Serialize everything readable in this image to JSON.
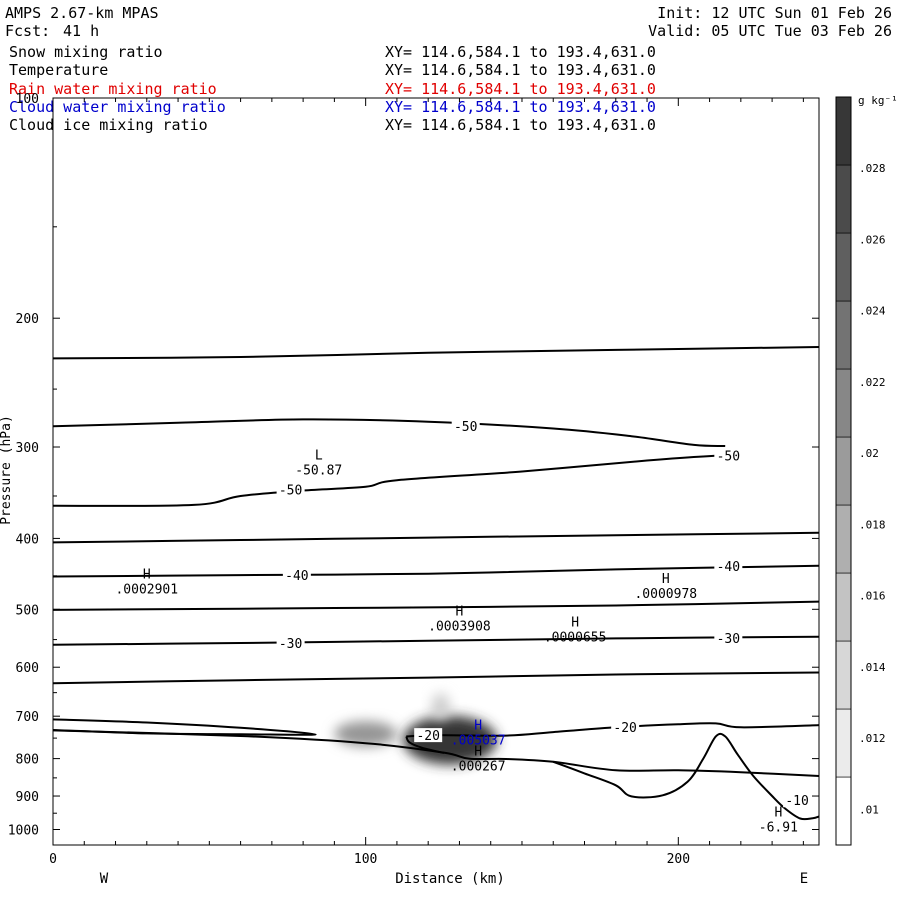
{
  "header": {
    "model": "AMPS 2.67-km MPAS",
    "forecast_label": "Fcst:",
    "forecast_value": "41 h",
    "init": "Init: 12 UTC Sun 01 Feb 26",
    "valid": "Valid: 05 UTC Tue 03 Feb 26"
  },
  "fields": [
    {
      "name": "Snow mixing ratio",
      "xy": "XY= 114.6,584.1 to 193.4,631.0",
      "color": "#000000"
    },
    {
      "name": "Temperature",
      "xy": "XY= 114.6,584.1 to 193.4,631.0",
      "color": "#000000"
    },
    {
      "name": "Rain water mixing ratio",
      "xy": "XY= 114.6,584.1 to 193.4,631.0",
      "color": "#e00000"
    },
    {
      "name": "Cloud water mixing ratio",
      "xy": "XY= 114.6,584.1 to 193.4,631.0",
      "color": "#0000cc"
    },
    {
      "name": "Cloud ice mixing ratio",
      "xy": "XY= 114.6,584.1 to 193.4,631.0",
      "color": "#000000"
    }
  ],
  "chart_data": {
    "type": "contour",
    "xlabel": "Distance (km)",
    "ylabel": "Pressure (hPa)",
    "xlim": [
      0,
      245
    ],
    "ylim": [
      100,
      1050
    ],
    "x_ticks": [
      0,
      100,
      200
    ],
    "y_ticks": [
      100,
      200,
      300,
      400,
      500,
      600,
      700,
      800,
      900,
      1000
    ],
    "y_scale": "log",
    "x_end_labels": {
      "left": "W",
      "right": "E"
    },
    "colorbar": {
      "unit": "g kg⁻¹",
      "ticks": [
        ".01",
        ".012",
        ".014",
        ".016",
        ".018",
        ".02",
        ".022",
        ".024",
        ".026",
        ".028"
      ],
      "tick_values": [
        0.01,
        0.012,
        0.014,
        0.016,
        0.018,
        0.02,
        0.022,
        0.024,
        0.026,
        0.028
      ]
    },
    "temperature_contours": [
      {
        "points": [
          [
            0,
            227
          ],
          [
            60,
            226
          ],
          [
            120,
            223
          ],
          [
            180,
            221
          ],
          [
            245,
            219
          ]
        ]
      },
      {
        "points": [
          [
            0,
            281
          ],
          [
            40,
            278
          ],
          [
            80,
            275
          ],
          [
            120,
            277
          ],
          [
            160,
            283
          ],
          [
            185,
            290
          ],
          [
            205,
            298
          ],
          [
            215,
            299
          ]
        ]
      },
      {
        "points": [
          [
            0,
            361
          ],
          [
            45,
            360
          ],
          [
            60,
            350
          ],
          [
            80,
            344
          ],
          [
            100,
            340
          ],
          [
            110,
            333
          ],
          [
            150,
            324
          ],
          [
            190,
            313
          ],
          [
            215,
            308
          ],
          [
            220,
            310
          ]
        ]
      },
      {
        "points": [
          [
            0,
            405
          ],
          [
            60,
            402
          ],
          [
            120,
            399
          ],
          [
            180,
            396
          ],
          [
            245,
            393
          ]
        ]
      },
      {
        "points": [
          [
            0,
            451
          ],
          [
            60,
            449
          ],
          [
            120,
            447
          ],
          [
            180,
            441
          ],
          [
            245,
            436
          ]
        ]
      },
      {
        "points": [
          [
            0,
            501
          ],
          [
            60,
            499
          ],
          [
            120,
            497
          ],
          [
            180,
            494
          ],
          [
            245,
            488
          ]
        ]
      },
      {
        "points": [
          [
            0,
            559
          ],
          [
            60,
            556
          ],
          [
            120,
            552
          ],
          [
            180,
            548
          ],
          [
            245,
            545
          ]
        ]
      },
      {
        "points": [
          [
            0,
            631
          ],
          [
            60,
            625
          ],
          [
            120,
            620
          ],
          [
            180,
            614
          ],
          [
            245,
            610
          ]
        ]
      },
      {
        "points": [
          [
            0,
            707
          ],
          [
            30,
            714
          ],
          [
            60,
            726
          ],
          [
            84,
            741
          ],
          [
            60,
            741
          ],
          [
            30,
            739
          ],
          [
            0,
            731
          ]
        ]
      },
      {
        "points": [
          [
            113,
            746
          ],
          [
            123,
            743
          ],
          [
            145,
            744
          ],
          [
            160,
            736
          ],
          [
            180,
            725
          ],
          [
            200,
            718
          ],
          [
            212,
            716
          ],
          [
            220,
            725
          ],
          [
            245,
            720
          ]
        ]
      },
      {
        "points": [
          [
            113,
            746
          ],
          [
            114,
            760
          ],
          [
            118,
            773
          ],
          [
            125,
            786
          ]
        ]
      },
      {
        "points": [
          [
            0,
            732
          ],
          [
            60,
            745
          ],
          [
            100,
            762
          ],
          [
            125,
            785
          ],
          [
            133,
            800
          ],
          [
            145,
            801
          ],
          [
            160,
            808
          ],
          [
            180,
            830
          ],
          [
            200,
            830
          ],
          [
            220,
            835
          ],
          [
            245,
            845
          ]
        ]
      },
      {
        "points": [
          [
            160,
            808
          ],
          [
            170,
            838
          ],
          [
            180,
            870
          ],
          [
            185,
            901
          ],
          [
            195,
            898
          ],
          [
            203,
            860
          ],
          [
            208,
            800
          ],
          [
            212,
            746
          ],
          [
            215,
            746
          ],
          [
            219,
            790
          ],
          [
            224,
            845
          ],
          [
            230,
            900
          ],
          [
            234,
            935
          ],
          [
            239,
            966
          ],
          [
            243,
            965
          ],
          [
            245,
            960
          ]
        ]
      }
    ],
    "contour_labels": [
      {
        "x": 132,
        "p": 281,
        "text": "-50"
      },
      {
        "x": 216,
        "p": 308,
        "text": "-50"
      },
      {
        "x": 76,
        "p": 343,
        "text": "-50"
      },
      {
        "x": 78,
        "p": 449,
        "text": "-40"
      },
      {
        "x": 216,
        "p": 436,
        "text": "-40"
      },
      {
        "x": 76,
        "p": 556,
        "text": "-30"
      },
      {
        "x": 216,
        "p": 547,
        "text": "-30"
      },
      {
        "x": 120,
        "p": 743,
        "text": "-20"
      },
      {
        "x": 183,
        "p": 724,
        "text": "-20"
      },
      {
        "x": 238,
        "p": 912,
        "text": "-10"
      }
    ],
    "extrema": [
      {
        "x": 85,
        "p": 312,
        "kind": "L",
        "value": "-50.87",
        "color": "#000000"
      },
      {
        "x": 30,
        "p": 454,
        "kind": "H",
        "value": ".0002901",
        "color": "#000000"
      },
      {
        "x": 130,
        "p": 510,
        "kind": "H",
        "value": ".0003908",
        "color": "#000000"
      },
      {
        "x": 167,
        "p": 528,
        "kind": "H",
        "value": ".0000655",
        "color": "#000000"
      },
      {
        "x": 196,
        "p": 460,
        "kind": "H",
        "value": ".0000978",
        "color": "#000000"
      },
      {
        "x": 136,
        "p": 730,
        "kind": "H",
        "value": ".005037",
        "color": "#0000cc"
      },
      {
        "x": 136,
        "p": 792,
        "kind": "H",
        "value": ".000267",
        "color": "#000000"
      },
      {
        "x": 232,
        "p": 960,
        "kind": "H",
        "value": "-6.91",
        "color": "#000000"
      }
    ],
    "shaded_regions": [
      {
        "x": 100,
        "p": 740,
        "rx": 10,
        "rp": 30,
        "max": 0.018
      },
      {
        "x": 127,
        "p": 755,
        "rx": 15,
        "rp": 60,
        "max": 0.028
      },
      {
        "x": 124,
        "p": 680,
        "rx": 3,
        "rp": 30,
        "max": 0.012
      }
    ]
  }
}
